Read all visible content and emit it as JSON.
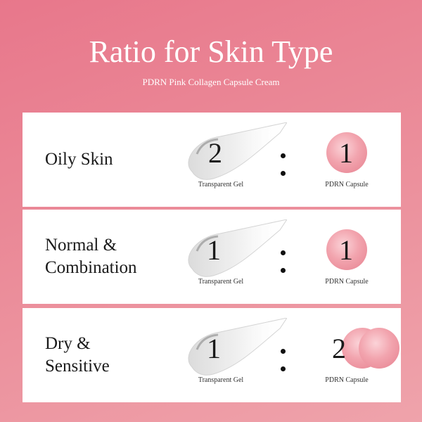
{
  "title": "Ratio for Skin Type",
  "subtitle": "PDRN Pink Collagen Capsule Cream",
  "rows": [
    {
      "skin_line1": "Oily Skin",
      "skin_line2": "",
      "gel_ratio": "2",
      "capsule_ratio": "1",
      "gel_label": "Transparent Gel",
      "capsule_label": "PDRN Capsule"
    },
    {
      "skin_line1": "Normal &",
      "skin_line2": "Combination",
      "gel_ratio": "1",
      "capsule_ratio": "1",
      "gel_label": "Transparent Gel",
      "capsule_label": "PDRN Capsule"
    },
    {
      "skin_line1": "Dry &",
      "skin_line2": "Sensitive",
      "gel_ratio": "1",
      "capsule_ratio": "2",
      "gel_label": "Transparent Gel",
      "capsule_label": "PDRN Capsule"
    }
  ],
  "colors": {
    "background": "#eb8d9a",
    "capsule": "#f2a4ae"
  }
}
